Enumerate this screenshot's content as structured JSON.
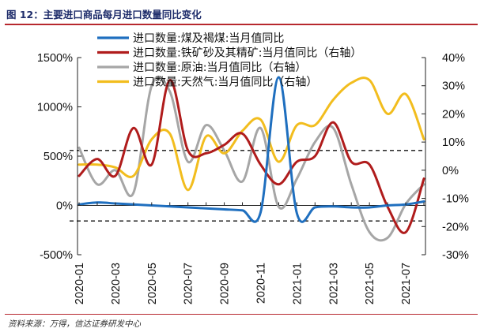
{
  "figure": {
    "title": "图 12：主要进口商品每月进口数量同比变化",
    "source": "资料来源：万得，信达证券研发中心"
  },
  "chart_data": {
    "type": "line",
    "title": "",
    "categories": [
      "2020-01",
      "2020-02",
      "2020-03",
      "2020-04",
      "2020-05",
      "2020-06",
      "2020-07",
      "2020-08",
      "2020-09",
      "2020-10",
      "2020-11",
      "2020-12",
      "2021-01",
      "2021-02",
      "2021-03",
      "2021-04",
      "2021-05",
      "2021-06",
      "2021-07",
      "2021-08"
    ],
    "x_tick_labels": [
      "2020-01",
      "2020-03",
      "2020-05",
      "2020-07",
      "2020-09",
      "2020-11",
      "2021-01",
      "2021-03",
      "2021-05",
      "2021-07"
    ],
    "y_left": {
      "ticks": [
        1500,
        1000,
        500,
        0,
        -500
      ],
      "labels": [
        "1500%",
        "1000%",
        "500%",
        "0%",
        "-500%"
      ],
      "range": [
        -500,
        1500
      ]
    },
    "y_right": {
      "ticks": [
        40,
        30,
        20,
        10,
        0,
        -10,
        -20,
        -30
      ],
      "labels": [
        "40%",
        "30%",
        "20%",
        "10%",
        "0%",
        "-10%",
        "-20%",
        "-30%"
      ],
      "range": [
        -30,
        40
      ]
    },
    "reference_lines": [
      {
        "axis": "right",
        "value": 7,
        "style": "dashed"
      },
      {
        "axis": "right",
        "value": -18,
        "style": "dashed"
      }
    ],
    "grid": false,
    "legend_position": "top",
    "series": [
      {
        "name": "进口数量:煤及褐煤:当月值同比",
        "axis": "left",
        "color": "#1f6fbf",
        "values": [
          10,
          30,
          20,
          10,
          0,
          -10,
          -20,
          -30,
          -40,
          -50,
          -70,
          1300,
          -80,
          -20,
          -10,
          -20,
          -20,
          0,
          10,
          40
        ]
      },
      {
        "name": "进口数量:铁矿砂及其精矿:当月值同比（右轴）",
        "axis": "right",
        "color": "#b01c1c",
        "values": [
          -2,
          4,
          -2,
          15,
          2,
          32,
          7,
          6,
          9,
          13,
          2,
          -5,
          3,
          5,
          17,
          3,
          2,
          -13,
          -22,
          -3
        ]
      },
      {
        "name": "进口数量:原油:当月值同比（右轴）",
        "axis": "right",
        "color": "#a6a6a6",
        "values": [
          8,
          -5,
          0,
          -8,
          30,
          28,
          3,
          16,
          7,
          -4,
          15,
          -13,
          -3,
          10,
          15,
          -5,
          -22,
          -24,
          -12,
          -5
        ]
      },
      {
        "name": "进口数量:天然气:当月值同比（右轴）",
        "axis": "right",
        "color": "#f2bd1e",
        "values": [
          2,
          2,
          1,
          -2,
          11,
          13,
          -7,
          12,
          6,
          14,
          18,
          3,
          16,
          16,
          25,
          31,
          32,
          20,
          27,
          11
        ]
      }
    ]
  }
}
